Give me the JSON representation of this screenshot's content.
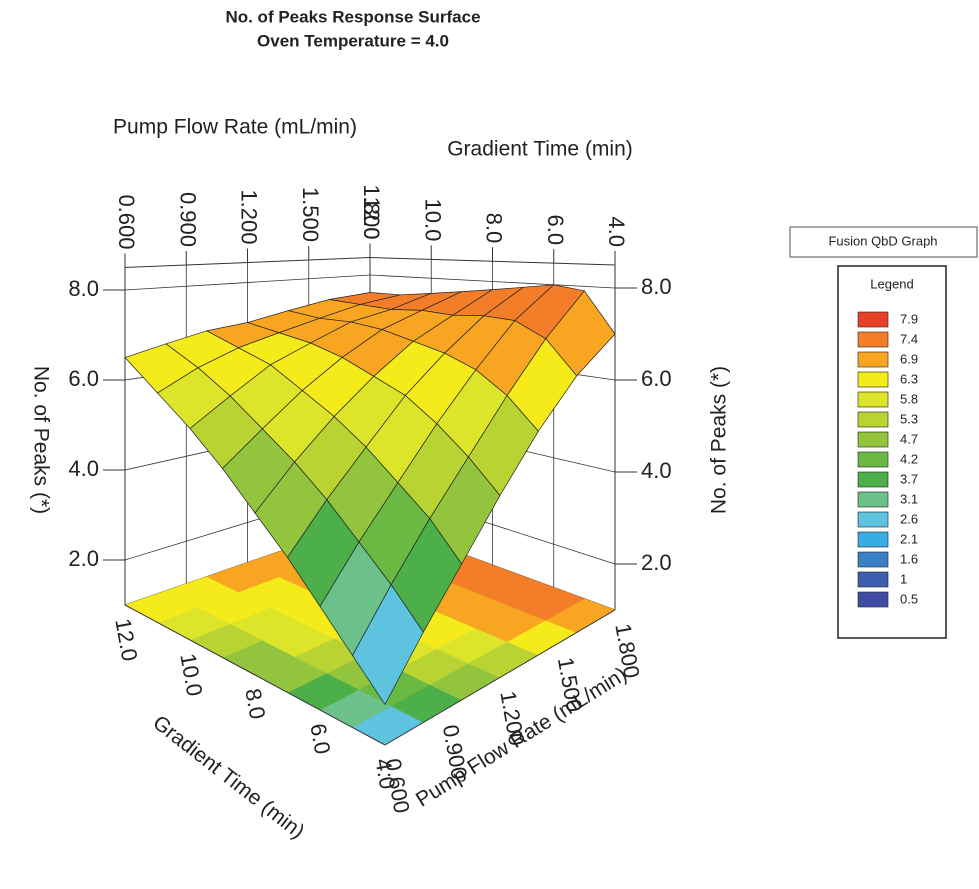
{
  "chart_data": {
    "type": "surface3d",
    "title": "No. of Peaks Response Surface",
    "subtitle": "Oven Temperature = 4.0",
    "badge": "Fusion QbD Graph",
    "x_label": "Pump Flow Rate (mL/min)",
    "y_label": "Gradient Time (min)",
    "z_label": "No. of Peaks (*)",
    "x": [
      0.6,
      0.8,
      1.0,
      1.2,
      1.4,
      1.6,
      1.8
    ],
    "y": [
      4,
      5,
      6,
      7,
      8,
      9,
      10,
      11,
      12
    ],
    "values": [
      [
        1.9,
        2.6,
        3.3,
        4.0,
        4.6,
        5.2,
        5.7,
        6.1,
        6.5
      ],
      [
        3.0,
        3.7,
        4.3,
        4.9,
        5.4,
        5.8,
        6.2,
        6.5,
        6.7
      ],
      [
        4.0,
        4.7,
        5.2,
        5.7,
        6.1,
        6.4,
        6.7,
        6.8,
        6.9
      ],
      [
        5.0,
        5.6,
        6.1,
        6.5,
        6.7,
        6.9,
        7.0,
        7.0,
        7.0
      ],
      [
        5.9,
        6.5,
        6.9,
        7.1,
        7.2,
        7.3,
        7.3,
        7.2,
        7.2
      ],
      [
        6.6,
        7.3,
        7.6,
        7.6,
        7.5,
        7.5,
        7.4,
        7.4,
        7.4
      ],
      [
        7.0,
        7.9,
        8.0,
        7.9,
        7.8,
        7.7,
        7.6,
        7.5,
        7.5
      ]
    ],
    "xlim": [
      0.6,
      1.8
    ],
    "xticks": [
      {
        "value": 0.6,
        "label": "0.600"
      },
      {
        "value": 0.9,
        "label": "0.900"
      },
      {
        "value": 1.2,
        "label": "1.200"
      },
      {
        "value": 1.5,
        "label": "1.500"
      },
      {
        "value": 1.8,
        "label": "1.800"
      }
    ],
    "ylim": [
      4,
      12
    ],
    "yticks": [
      {
        "value": 4,
        "label": "4.0"
      },
      {
        "value": 6,
        "label": "6.0"
      },
      {
        "value": 8,
        "label": "8.0"
      },
      {
        "value": 10,
        "label": "10.0"
      },
      {
        "value": 12,
        "label": "12.0"
      }
    ],
    "zlim": [
      1,
      8.5
    ],
    "zticks": [
      {
        "value": 2,
        "label": "2.0"
      },
      {
        "value": 4,
        "label": "4.0"
      },
      {
        "value": 6,
        "label": "6.0"
      },
      {
        "value": 8,
        "label": "8.0"
      }
    ],
    "legend": {
      "title": "Legend",
      "levels": [
        7.9,
        7.4,
        6.9,
        6.3,
        5.8,
        5.3,
        4.7,
        4.2,
        3.7,
        3.1,
        2.6,
        2.1,
        1.6,
        1.0,
        0.5
      ],
      "colors": [
        "#e8412a",
        "#f47d2a",
        "#f8a521",
        "#f5ea1a",
        "#dde52a",
        "#b9d333",
        "#93c43d",
        "#6ab943",
        "#4caf4a",
        "#6cc08a",
        "#5ec3de",
        "#39abe5",
        "#3a80c4",
        "#3d5fb0",
        "#3e4da3"
      ]
    }
  }
}
